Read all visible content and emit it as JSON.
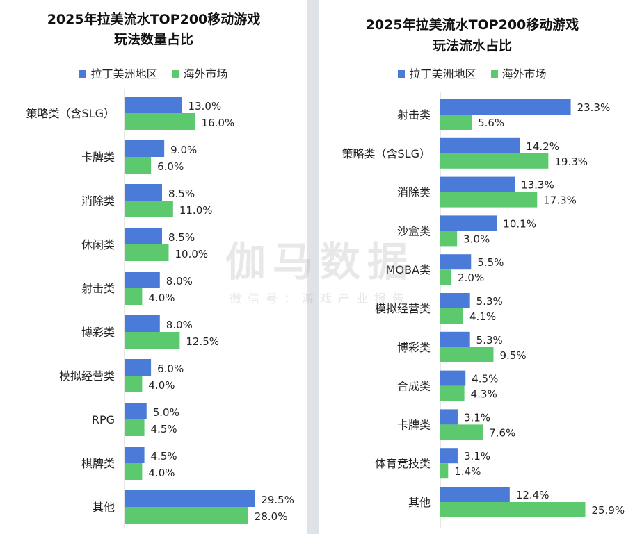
{
  "colors": {
    "region": "#4a7bd8",
    "overseas": "#5cc96f"
  },
  "watermark": {
    "main": "伽马数据",
    "sub": "微信号：游戏产业报告"
  },
  "chart_data": [
    {
      "type": "bar",
      "orientation": "horizontal",
      "title_line1": "2025年拉美流水TOP200移动游戏",
      "title_line2": "玩法数量占比",
      "legend": [
        "拉丁美洲地区",
        "海外市场"
      ],
      "categories": [
        "策略类（含SLG）",
        "卡牌类",
        "消除类",
        "休闲类",
        "射击类",
        "博彩类",
        "模拟经营类",
        "RPG",
        "棋牌类",
        "其他"
      ],
      "series": [
        {
          "name": "拉丁美洲地区",
          "values": [
            13.0,
            9.0,
            8.5,
            8.5,
            8.0,
            8.0,
            6.0,
            5.0,
            4.5,
            29.5
          ],
          "labels": [
            "13.0%",
            "9.0%",
            "8.5%",
            "8.5%",
            "8.0%",
            "8.0%",
            "6.0%",
            "5.0%",
            "4.5%",
            "29.5%"
          ]
        },
        {
          "name": "海外市场",
          "values": [
            16.0,
            6.0,
            11.0,
            10.0,
            4.0,
            12.5,
            4.0,
            4.5,
            4.0,
            28.0
          ],
          "labels": [
            "16.0%",
            "6.0%",
            "11.0%",
            "10.0%",
            "4.0%",
            "12.5%",
            "4.0%",
            "4.5%",
            "4.0%",
            "28.0%"
          ]
        }
      ]
    },
    {
      "type": "bar",
      "orientation": "horizontal",
      "title_line1": "2025年拉美流水TOP200移动游戏",
      "title_line2": "玩法流水占比",
      "legend": [
        "拉丁美洲地区",
        "海外市场"
      ],
      "categories": [
        "射击类",
        "策略类（含SLG）",
        "消除类",
        "沙盒类",
        "MOBA类",
        "模拟经营类",
        "博彩类",
        "合成类",
        "卡牌类",
        "体育竞技类",
        "其他"
      ],
      "series": [
        {
          "name": "拉丁美洲地区",
          "values": [
            23.3,
            14.2,
            13.3,
            10.1,
            5.5,
            5.3,
            5.3,
            4.5,
            3.1,
            3.1,
            12.4
          ],
          "labels": [
            "23.3%",
            "14.2%",
            "13.3%",
            "10.1%",
            "5.5%",
            "5.3%",
            "5.3%",
            "4.5%",
            "3.1%",
            "3.1%",
            "12.4%"
          ]
        },
        {
          "name": "海外市场",
          "values": [
            5.6,
            19.3,
            17.3,
            3.0,
            2.0,
            4.1,
            9.5,
            4.3,
            7.6,
            1.4,
            25.9
          ],
          "labels": [
            "5.6%",
            "19.3%",
            "17.3%",
            "3.0%",
            "2.0%",
            "4.1%",
            "9.5%",
            "4.3%",
            "7.6%",
            "1.4%",
            "25.9%"
          ]
        }
      ]
    }
  ]
}
